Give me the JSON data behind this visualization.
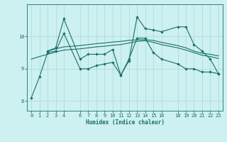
{
  "xlabel": "Humidex (Indice chaleur)",
  "bg_color": "#cdf0f0",
  "grid_color": "#aad8d8",
  "line_color": "#1a7068",
  "xlim": [
    -0.5,
    23.5
  ],
  "ylim": [
    7.7,
    11.0
  ],
  "yticks": [
    8,
    9,
    10
  ],
  "xticks": [
    0,
    1,
    2,
    3,
    4,
    6,
    7,
    8,
    9,
    10,
    11,
    12,
    13,
    14,
    15,
    16,
    18,
    19,
    20,
    21,
    22,
    23
  ],
  "lines": [
    {
      "x": [
        0,
        1,
        2,
        3,
        4,
        6,
        7,
        8,
        9,
        10,
        11,
        12,
        13,
        14,
        15,
        16,
        18,
        19,
        20,
        21,
        22,
        23
      ],
      "y": [
        8.1,
        8.75,
        9.5,
        9.55,
        10.1,
        9.0,
        9.0,
        9.1,
        9.15,
        9.2,
        8.8,
        9.3,
        9.95,
        9.95,
        9.5,
        9.3,
        9.15,
        9.0,
        9.0,
        8.9,
        8.9,
        8.85
      ],
      "marker": true
    },
    {
      "x": [
        0,
        1,
        2,
        3,
        4,
        6,
        7,
        8,
        9,
        10,
        11,
        12,
        13,
        14,
        15,
        16,
        18,
        19,
        20,
        21,
        22,
        23
      ],
      "y": [
        9.3,
        9.38,
        9.45,
        9.52,
        9.58,
        9.62,
        9.65,
        9.68,
        9.7,
        9.73,
        9.75,
        9.8,
        9.85,
        9.87,
        9.82,
        9.75,
        9.65,
        9.58,
        9.5,
        9.42,
        9.38,
        9.32
      ],
      "marker": false
    },
    {
      "x": [
        2,
        3,
        4,
        6,
        7,
        8,
        9,
        10,
        11,
        12,
        13,
        14,
        15,
        16,
        18,
        19,
        20,
        21,
        22,
        23
      ],
      "y": [
        9.55,
        9.62,
        9.68,
        9.72,
        9.75,
        9.78,
        9.8,
        9.83,
        9.85,
        9.88,
        9.9,
        9.9,
        9.88,
        9.82,
        9.72,
        9.65,
        9.55,
        9.48,
        9.45,
        9.4
      ],
      "marker": false
    },
    {
      "x": [
        2,
        3,
        4,
        6,
        7,
        8,
        9,
        10,
        11,
        12,
        13,
        14,
        15,
        16,
        18,
        19,
        20,
        21,
        22,
        23
      ],
      "y": [
        9.55,
        9.65,
        10.55,
        9.3,
        9.45,
        9.45,
        9.45,
        9.6,
        8.8,
        9.25,
        10.6,
        10.25,
        10.2,
        10.15,
        10.3,
        10.3,
        9.75,
        9.55,
        9.3,
        8.85
      ],
      "marker": true
    }
  ]
}
